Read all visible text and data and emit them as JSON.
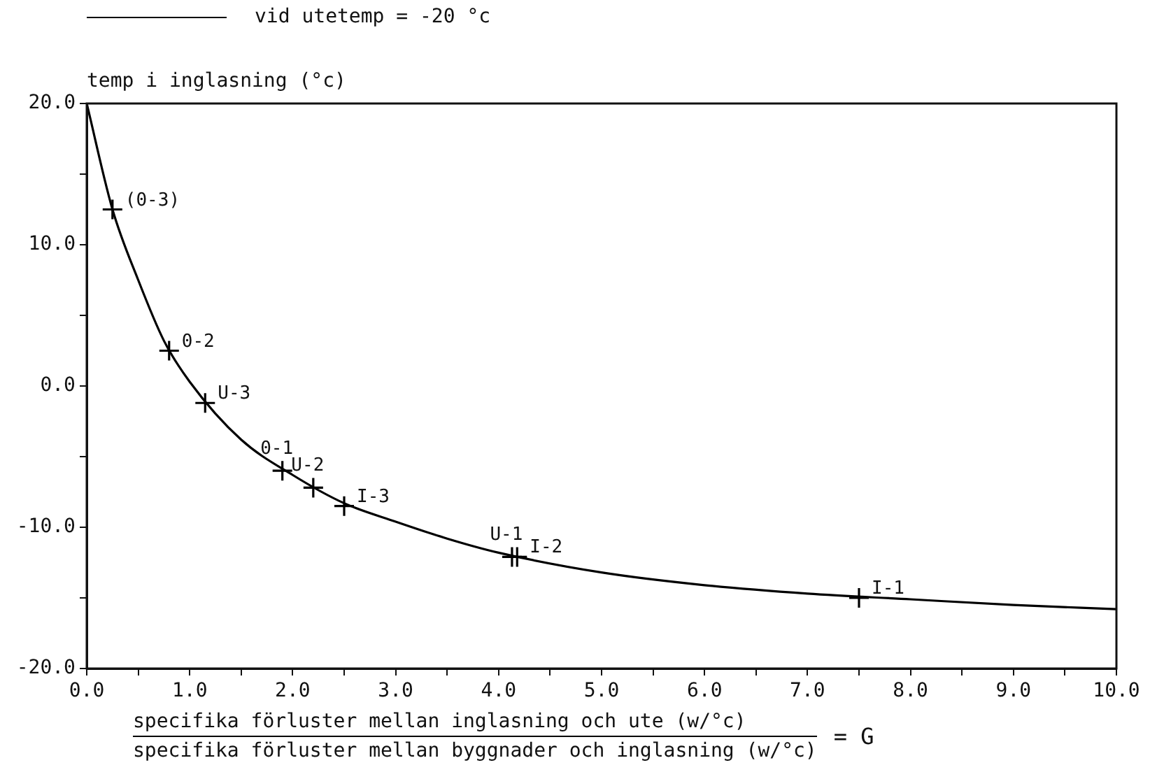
{
  "chart_data": {
    "type": "line",
    "ylabel": "temp i inglasning (°c)",
    "xlabel": "specifika förluster mellan inglasning och ute (w/°c)",
    "xlim": [
      0,
      10
    ],
    "ylim": [
      -20,
      20
    ],
    "xticks": [
      {
        "value": 0,
        "label": "0.0"
      },
      {
        "value": 0.5,
        "label": null
      },
      {
        "value": 1,
        "label": "1.0"
      },
      {
        "value": 1.5,
        "label": null
      },
      {
        "value": 2,
        "label": "2.0"
      },
      {
        "value": 2.5,
        "label": null
      },
      {
        "value": 3,
        "label": "3.0"
      },
      {
        "value": 3.5,
        "label": null
      },
      {
        "value": 4,
        "label": "4.0"
      },
      {
        "value": 4.5,
        "label": null
      },
      {
        "value": 5,
        "label": "5.0"
      },
      {
        "value": 5.5,
        "label": null
      },
      {
        "value": 6,
        "label": "6.0"
      },
      {
        "value": 6.5,
        "label": null
      },
      {
        "value": 7,
        "label": "7.0"
      },
      {
        "value": 7.5,
        "label": null
      },
      {
        "value": 8,
        "label": "8.0"
      },
      {
        "value": 8.5,
        "label": null
      },
      {
        "value": 9,
        "label": "9.0"
      },
      {
        "value": 9.5,
        "label": null
      },
      {
        "value": 10,
        "label": "10.0"
      }
    ],
    "yticks": [
      {
        "value": -20,
        "label": "-20.0"
      },
      {
        "value": -15,
        "label": null
      },
      {
        "value": -10,
        "label": "-10.0"
      },
      {
        "value": -5,
        "label": null
      },
      {
        "value": 0,
        "label": "0.0"
      },
      {
        "value": 5,
        "label": null
      },
      {
        "value": 10,
        "label": "10.0"
      },
      {
        "value": 15,
        "label": null
      },
      {
        "value": 20,
        "label": "20.0"
      }
    ],
    "grid": false,
    "legend": "top left",
    "series": [
      {
        "name": "vid utetemp = -20 °c",
        "color": "#000000",
        "marker": "none",
        "x": [
          0,
          0.25,
          0.5,
          0.75,
          1,
          1.5,
          2,
          2.5,
          3,
          3.5,
          4,
          5,
          6,
          7,
          8,
          9,
          10
        ],
        "values": [
          20,
          12.5,
          7.5,
          3.2,
          0.3,
          -3.8,
          -6.3,
          -8.3,
          -9.6,
          -10.8,
          -11.8,
          -13.2,
          -14.1,
          -14.7,
          -15.1,
          -15.5,
          -15.8
        ]
      },
      {
        "type": "scatter",
        "color": "#000000",
        "marker": "cross",
        "x": [
          0.25,
          0.8,
          1.15,
          1.9,
          2.2,
          2.5,
          4.13,
          4.18,
          7.5
        ],
        "values": [
          12.5,
          2.5,
          -1.2,
          -6.0,
          -7.2,
          -8.5,
          -12.1,
          -12.1,
          -15.0
        ]
      }
    ],
    "annotations": [
      "specifika förluster mellan byggnader och inglasning (w/°c)",
      "= G",
      {
        "text": "(0-3)",
        "x": 0.25,
        "y": 12.5
      },
      {
        "text": "0-2",
        "x": 0.8,
        "y": 2.5
      },
      {
        "text": "U-3",
        "x": 1.15,
        "y": -1.2
      },
      {
        "text": "0-1",
        "x": 1.9,
        "y": -6.0
      },
      {
        "text": "U-2",
        "x": 2.2,
        "y": -7.2
      },
      {
        "text": "I-3",
        "x": 2.5,
        "y": -8.5
      },
      {
        "text": "U-1",
        "x": 4.13,
        "y": -12.1
      },
      {
        "text": "I-2",
        "x": 4.18,
        "y": -12.1
      },
      {
        "text": "I-1",
        "x": 7.5,
        "y": -15.0
      }
    ]
  }
}
